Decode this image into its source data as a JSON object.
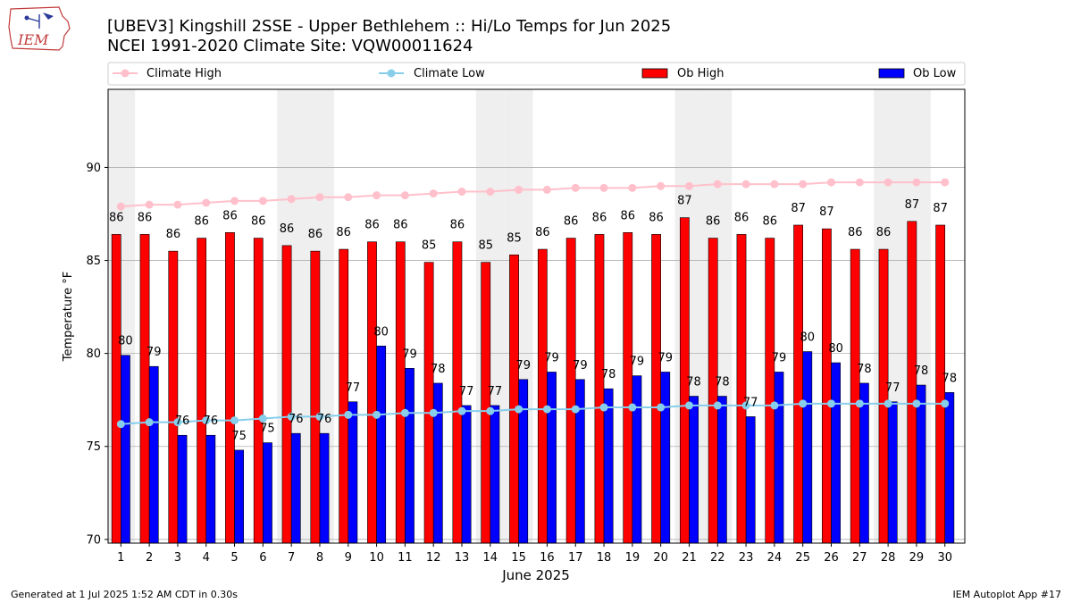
{
  "title_line1": "[UBEV3] Kingshill 2SSE - Upper Bethlehem :: Hi/Lo Temps for Jun 2025",
  "title_line2": "NCEI 1991-2020 Climate Site: VQW00011624",
  "logo_text": "IEM",
  "footer_left": "Generated at 1 Jul 2025 1:52 AM CDT in 0.30s",
  "footer_right": "IEM Autoplot App #17",
  "colors": {
    "ob_high": "#ff0000",
    "ob_low": "#0000ff",
    "climate_high": "#ffc0cb",
    "climate_low": "#87ceeb",
    "weekend_shade": "#efefef"
  },
  "chart_data": {
    "type": "bar",
    "xlabel": "June 2025",
    "ylabel": "Temperature °F",
    "ylim": [
      69.8,
      94.2
    ],
    "yticks": [
      70,
      75,
      80,
      85,
      90
    ],
    "grid": true,
    "legend_position": "top",
    "shaded_days": [
      1,
      7,
      8,
      14,
      15,
      21,
      22,
      28,
      29
    ],
    "categories": [
      "1",
      "2",
      "3",
      "4",
      "5",
      "6",
      "7",
      "8",
      "9",
      "10",
      "11",
      "12",
      "13",
      "14",
      "15",
      "16",
      "17",
      "18",
      "19",
      "20",
      "21",
      "22",
      "23",
      "24",
      "25",
      "26",
      "27",
      "28",
      "29",
      "30"
    ],
    "series": [
      {
        "name": "Ob High",
        "kind": "bar",
        "values": [
          86.4,
          86.4,
          85.5,
          86.2,
          86.5,
          86.2,
          85.8,
          85.5,
          85.6,
          86.0,
          86.0,
          84.9,
          86.0,
          84.9,
          85.3,
          85.6,
          86.2,
          86.4,
          86.5,
          86.4,
          87.3,
          86.2,
          86.4,
          86.2,
          86.9,
          86.7,
          85.6,
          85.6,
          87.1,
          86.9
        ],
        "labels": [
          "86",
          "86",
          "86",
          "86",
          "86",
          "86",
          "86",
          "86",
          "86",
          "86",
          "86",
          "85",
          "86",
          "85",
          "85",
          "86",
          "86",
          "86",
          "86",
          "86",
          "87",
          "86",
          "86",
          "86",
          "87",
          "87",
          "86",
          "86",
          "87",
          "87"
        ]
      },
      {
        "name": "Ob Low",
        "kind": "bar",
        "values": [
          79.9,
          79.3,
          75.6,
          75.6,
          74.8,
          75.2,
          75.7,
          75.7,
          77.4,
          80.4,
          79.2,
          78.4,
          77.2,
          77.2,
          78.6,
          79.0,
          78.6,
          78.1,
          78.8,
          79.0,
          77.7,
          77.7,
          76.6,
          79.0,
          80.1,
          79.5,
          78.4,
          77.4,
          78.3,
          77.9
        ],
        "labels": [
          "80",
          "79",
          "76",
          "76",
          "75",
          "75",
          "76",
          "76",
          "77",
          "80",
          "79",
          "78",
          "77",
          "77",
          "79",
          "79",
          "79",
          "78",
          "79",
          "79",
          "78",
          "78",
          "77",
          "79",
          "80",
          "80",
          "78",
          "77",
          "78",
          "78"
        ]
      },
      {
        "name": "Climate High",
        "kind": "line",
        "values": [
          87.9,
          88.0,
          88.0,
          88.1,
          88.2,
          88.2,
          88.3,
          88.4,
          88.4,
          88.5,
          88.5,
          88.6,
          88.7,
          88.7,
          88.8,
          88.8,
          88.9,
          88.9,
          88.9,
          89.0,
          89.0,
          89.1,
          89.1,
          89.1,
          89.1,
          89.2,
          89.2,
          89.2,
          89.2,
          89.2
        ]
      },
      {
        "name": "Climate Low",
        "kind": "line",
        "values": [
          76.2,
          76.3,
          76.3,
          76.4,
          76.4,
          76.5,
          76.6,
          76.6,
          76.7,
          76.7,
          76.8,
          76.8,
          76.9,
          76.9,
          77.0,
          77.0,
          77.0,
          77.1,
          77.1,
          77.1,
          77.2,
          77.2,
          77.2,
          77.2,
          77.3,
          77.3,
          77.3,
          77.3,
          77.3,
          77.3
        ]
      }
    ]
  }
}
